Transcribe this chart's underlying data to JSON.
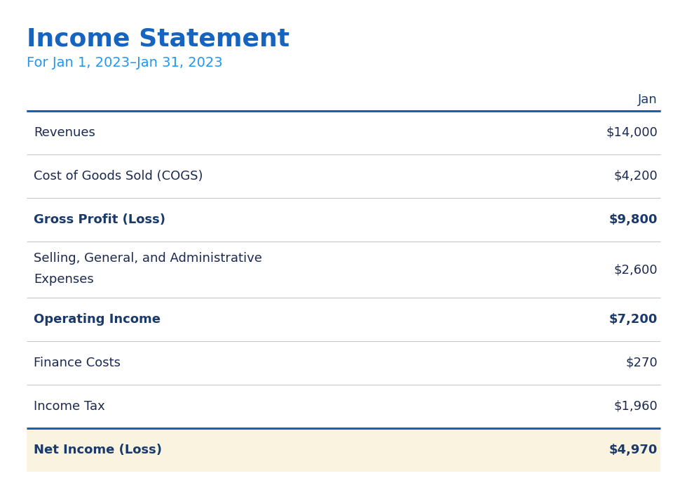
{
  "title": "Income Statement",
  "subtitle": "For Jan 1, 2023–Jan 31, 2023",
  "title_color": "#1565C0",
  "subtitle_color": "#2196F3",
  "header_col": "Jan",
  "header_color": "#1a3a6b",
  "background_color": "#ffffff",
  "last_row_bg": "#faf3e0",
  "rows": [
    {
      "label": "Revenues",
      "value": "$14,000",
      "bold": false,
      "top_line_thick": true,
      "bottom_line_light": true,
      "bg": null,
      "two_line": false
    },
    {
      "label": "Cost of Goods Sold (COGS)",
      "value": "$4,200",
      "bold": false,
      "top_line_thick": false,
      "bottom_line_light": true,
      "bg": null,
      "two_line": false
    },
    {
      "label": "Gross Profit (Loss)",
      "value": "$9,800",
      "bold": true,
      "top_line_thick": false,
      "bottom_line_light": true,
      "bg": null,
      "two_line": false
    },
    {
      "label": "Selling, General, and Administrative",
      "label2": "Expenses",
      "value": "$2,600",
      "bold": false,
      "top_line_thick": false,
      "bottom_line_light": true,
      "bg": null,
      "two_line": true
    },
    {
      "label": "Operating Income",
      "value": "$7,200",
      "bold": true,
      "top_line_thick": false,
      "bottom_line_light": true,
      "bg": null,
      "two_line": false
    },
    {
      "label": "Finance Costs",
      "value": "$270",
      "bold": false,
      "top_line_thick": false,
      "bottom_line_light": true,
      "bg": null,
      "two_line": false
    },
    {
      "label": "Income Tax",
      "value": "$1,960",
      "bold": false,
      "top_line_thick": false,
      "bottom_line_light": true,
      "bg": null,
      "two_line": false
    },
    {
      "label": "Net Income (Loss)",
      "value": "$4,970",
      "bold": true,
      "top_line_thick": true,
      "bottom_line_light": false,
      "bg": "#faf3e0",
      "two_line": false
    }
  ],
  "text_color_normal": "#1c2951",
  "text_color_bold": "#1a3a6b",
  "line_color_thick": "#1a5fb4",
  "line_color_light": "#c8c8c8",
  "font_size_title": 26,
  "font_size_subtitle": 14,
  "font_size_header": 13,
  "font_size_row": 13,
  "fig_width": 9.8,
  "fig_height": 6.98,
  "dpi": 100
}
